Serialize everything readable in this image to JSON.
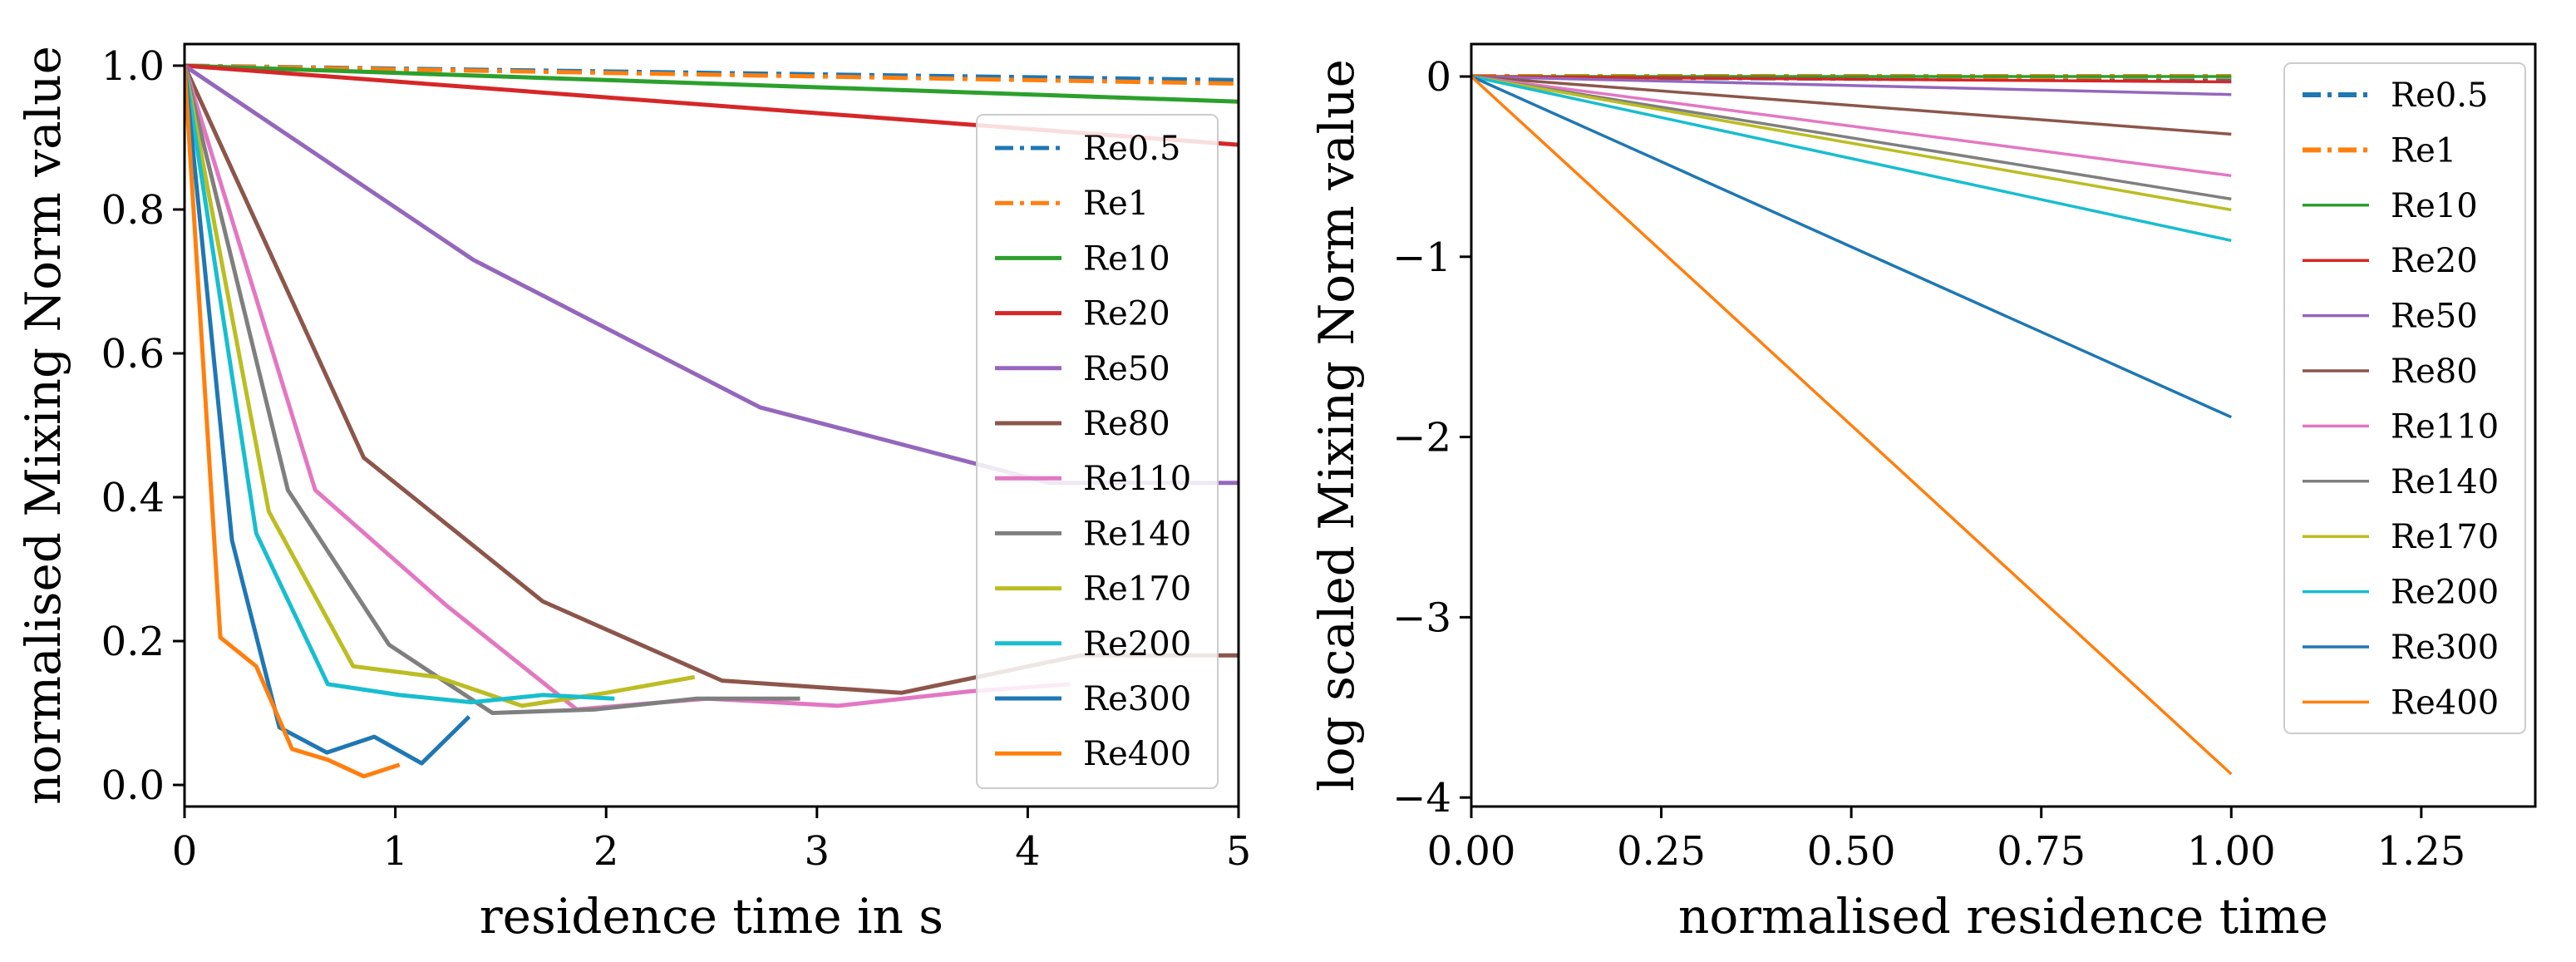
{
  "chart_data": [
    {
      "type": "line",
      "xlabel": "residence time in s",
      "ylabel": "normalised Mixing Norm value",
      "xlim": [
        0,
        5
      ],
      "ylim": [
        -0.03,
        1.03
      ],
      "xticks": [
        0,
        1,
        2,
        3,
        4,
        5
      ],
      "xtick_labels": [
        "0",
        "1",
        "2",
        "3",
        "4",
        "5"
      ],
      "yticks": [
        0.0,
        0.2,
        0.4,
        0.6,
        0.8,
        1.0
      ],
      "ytick_labels": [
        "0.0",
        "0.2",
        "0.4",
        "0.6",
        "0.8",
        "1.0"
      ],
      "legend_position": "right",
      "series": [
        {
          "name": "Re0.5",
          "color": "#1f77b4",
          "style": "dashdot",
          "x": [
            0,
            5
          ],
          "y": [
            1.0,
            0.98
          ]
        },
        {
          "name": "Re1",
          "color": "#ff7f0e",
          "style": "dashdot",
          "x": [
            0,
            5
          ],
          "y": [
            1.0,
            0.975
          ]
        },
        {
          "name": "Re10",
          "color": "#2ca02c",
          "style": "solid",
          "x": [
            0,
            5
          ],
          "y": [
            1.0,
            0.95
          ]
        },
        {
          "name": "Re20",
          "color": "#d62728",
          "style": "solid",
          "x": [
            0,
            5
          ],
          "y": [
            1.0,
            0.89
          ]
        },
        {
          "name": "Re50",
          "color": "#9467bd",
          "style": "solid",
          "x": [
            0,
            1.37,
            2.73,
            4.1,
            5.0
          ],
          "y": [
            1.0,
            0.73,
            0.525,
            0.42,
            0.42
          ]
        },
        {
          "name": "Re80",
          "color": "#8c564b",
          "style": "solid",
          "x": [
            0,
            0.85,
            1.7,
            2.55,
            3.4,
            4.25,
            5.0
          ],
          "y": [
            1.0,
            0.455,
            0.255,
            0.145,
            0.128,
            0.18,
            0.18
          ]
        },
        {
          "name": "Re110",
          "color": "#e377c2",
          "style": "solid",
          "x": [
            0,
            0.62,
            1.24,
            1.86,
            2.48,
            3.1,
            3.72,
            4.2
          ],
          "y": [
            1.0,
            0.41,
            0.25,
            0.105,
            0.12,
            0.11,
            0.13,
            0.14
          ]
        },
        {
          "name": "Re140",
          "color": "#7f7f7f",
          "style": "solid",
          "x": [
            0,
            0.49,
            0.97,
            1.46,
            1.95,
            2.43,
            2.92
          ],
          "y": [
            1.0,
            0.41,
            0.195,
            0.1,
            0.105,
            0.12,
            0.12
          ]
        },
        {
          "name": "Re170",
          "color": "#bcbd22",
          "style": "solid",
          "x": [
            0,
            0.4,
            0.8,
            1.2,
            1.6,
            2.0,
            2.42
          ],
          "y": [
            1.0,
            0.38,
            0.165,
            0.15,
            0.11,
            0.128,
            0.15
          ]
        },
        {
          "name": "Re200",
          "color": "#17becf",
          "style": "solid",
          "x": [
            0,
            0.34,
            0.68,
            1.02,
            1.36,
            1.7,
            2.04
          ],
          "y": [
            1.0,
            0.35,
            0.14,
            0.125,
            0.115,
            0.125,
            0.12
          ]
        },
        {
          "name": "Re300",
          "color": "#1f77b4",
          "style": "solid",
          "x": [
            0,
            0.225,
            0.45,
            0.675,
            0.9,
            1.125,
            1.35
          ],
          "y": [
            1.0,
            0.34,
            0.08,
            0.045,
            0.067,
            0.03,
            0.095
          ]
        },
        {
          "name": "Re400",
          "color": "#ff7f0e",
          "style": "solid",
          "x": [
            0,
            0.17,
            0.34,
            0.51,
            0.68,
            0.85,
            1.02
          ],
          "y": [
            1.0,
            0.205,
            0.165,
            0.05,
            0.035,
            0.012,
            0.028
          ]
        }
      ]
    },
    {
      "type": "line",
      "xlabel": "normalised residence time",
      "ylabel": "log scaled Mixing Norm value",
      "xlim": [
        0,
        1.4
      ],
      "ylim": [
        -4.05,
        0.18
      ],
      "xticks": [
        0,
        0.25,
        0.5,
        0.75,
        1.0,
        1.25
      ],
      "xtick_labels": [
        "0.00",
        "0.25",
        "0.50",
        "0.75",
        "1.00",
        "1.25"
      ],
      "yticks": [
        0,
        -1,
        -2,
        -3,
        -4
      ],
      "ytick_labels": [
        "0",
        "−1",
        "−2",
        "−3",
        "−4"
      ],
      "legend_position": "top-right",
      "series": [
        {
          "name": "Re0.5",
          "color": "#1f77b4",
          "style": "dashdot",
          "x": [
            0,
            1
          ],
          "y": [
            0,
            -0.02
          ]
        },
        {
          "name": "Re1",
          "color": "#ff7f0e",
          "style": "dashdot",
          "x": [
            0,
            1
          ],
          "y": [
            0,
            0.0
          ]
        },
        {
          "name": "Re10",
          "color": "#2ca02c",
          "style": "solid",
          "x": [
            0,
            1
          ],
          "y": [
            0,
            0.0
          ]
        },
        {
          "name": "Re20",
          "color": "#d62728",
          "style": "solid",
          "x": [
            0,
            1
          ],
          "y": [
            0,
            -0.03
          ]
        },
        {
          "name": "Re50",
          "color": "#9467bd",
          "style": "solid",
          "x": [
            0,
            1
          ],
          "y": [
            0,
            -0.1
          ]
        },
        {
          "name": "Re80",
          "color": "#8c564b",
          "style": "solid",
          "x": [
            0,
            1
          ],
          "y": [
            0,
            -0.32
          ]
        },
        {
          "name": "Re110",
          "color": "#e377c2",
          "style": "solid",
          "x": [
            0,
            1
          ],
          "y": [
            0,
            -0.55
          ]
        },
        {
          "name": "Re140",
          "color": "#7f7f7f",
          "style": "solid",
          "x": [
            0,
            1
          ],
          "y": [
            0,
            -0.68
          ]
        },
        {
          "name": "Re170",
          "color": "#bcbd22",
          "style": "solid",
          "x": [
            0,
            1
          ],
          "y": [
            0,
            -0.74
          ]
        },
        {
          "name": "Re200",
          "color": "#17becf",
          "style": "solid",
          "x": [
            0,
            1
          ],
          "y": [
            0,
            -0.91
          ]
        },
        {
          "name": "Re300",
          "color": "#1f77b4",
          "style": "solid",
          "x": [
            0,
            1
          ],
          "y": [
            0,
            -1.89
          ]
        },
        {
          "name": "Re400",
          "color": "#ff7f0e",
          "style": "solid",
          "x": [
            0,
            1
          ],
          "y": [
            0,
            -3.87
          ]
        }
      ]
    }
  ]
}
